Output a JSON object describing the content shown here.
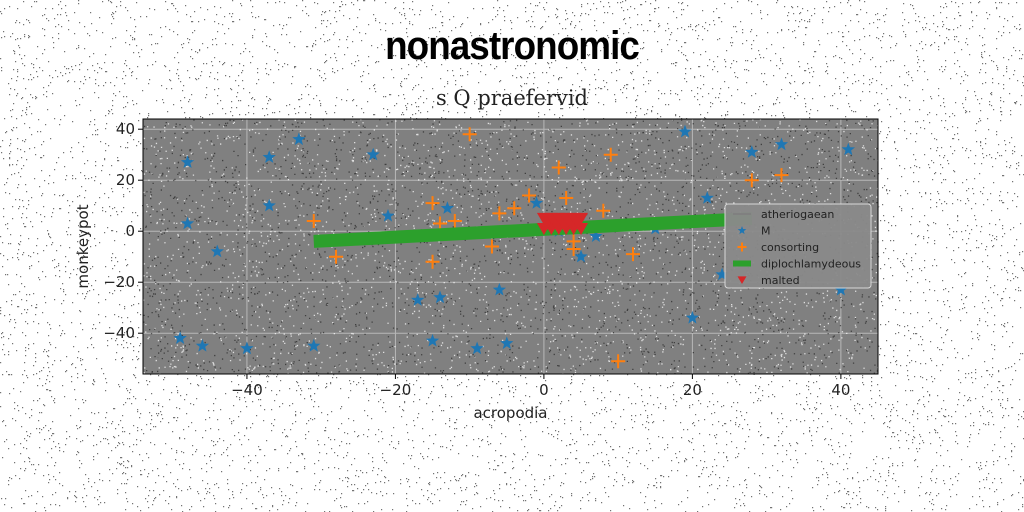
{
  "chart_data": {
    "type": "scatter",
    "title": "nonastronomic",
    "subtitle": "s Q praefervid",
    "xlabel": "acropodia",
    "ylabel": "monkeypot",
    "xlim": [
      -54,
      45
    ],
    "ylim": [
      -56,
      44
    ],
    "xticks": [
      -40,
      -20,
      0,
      20,
      40
    ],
    "yticks": [
      -40,
      -20,
      0,
      20,
      40
    ],
    "grid": true,
    "legend_position": "right",
    "background_color": "#808080",
    "series": [
      {
        "name": "atheriogaean",
        "kind": "line",
        "color": "#808080",
        "x": [],
        "y": []
      },
      {
        "name": "M",
        "kind": "scatter",
        "marker": "star",
        "color": "#1f77b4",
        "x": [
          -49,
          -48,
          -48,
          -46,
          -44,
          -40,
          -37,
          -37,
          -33,
          -31,
          -23,
          -21,
          -17,
          -15,
          -14,
          -13,
          -9,
          -6,
          -5,
          -1,
          2,
          5,
          7,
          15,
          19,
          20,
          22,
          24,
          28,
          32,
          40,
          41
        ],
        "y": [
          -42,
          27,
          3,
          -45,
          -8,
          -46,
          29,
          10,
          36,
          -45,
          30,
          6,
          -27,
          -43,
          -26,
          9,
          -46,
          -23,
          -44,
          11,
          0,
          -10,
          -2,
          1,
          39,
          -34,
          13,
          -17,
          31,
          34,
          -23,
          32
        ]
      },
      {
        "name": "consorting",
        "kind": "scatter",
        "marker": "plus",
        "color": "#ff7f0e",
        "x": [
          -31,
          -28,
          -15,
          -14,
          -15,
          -12,
          -10,
          -7,
          -6,
          -4,
          -2,
          1,
          2,
          3,
          4,
          4,
          8,
          9,
          10,
          12,
          28,
          32
        ],
        "y": [
          4,
          -10,
          11,
          3,
          -12,
          4,
          38,
          -6,
          7,
          9,
          14,
          3,
          25,
          13,
          -4,
          -7,
          8,
          30,
          -51,
          -9,
          20,
          22
        ]
      },
      {
        "name": "diplochlamydeous",
        "kind": "line",
        "color": "#2ca02c",
        "x": [
          -31,
          28
        ],
        "y": [
          -4,
          5
        ]
      },
      {
        "name": "malted",
        "kind": "scatter",
        "marker": "triangle-down",
        "color": "#d62728",
        "x": [
          0,
          1,
          2,
          3,
          4,
          5,
          0.5,
          1.5,
          2.5,
          3.5,
          4.5,
          1,
          2,
          3,
          4,
          0,
          5
        ],
        "y": [
          5,
          5,
          5,
          5,
          5,
          5,
          3,
          3,
          3,
          3,
          3,
          1,
          1,
          1,
          1,
          1,
          1
        ]
      }
    ]
  }
}
